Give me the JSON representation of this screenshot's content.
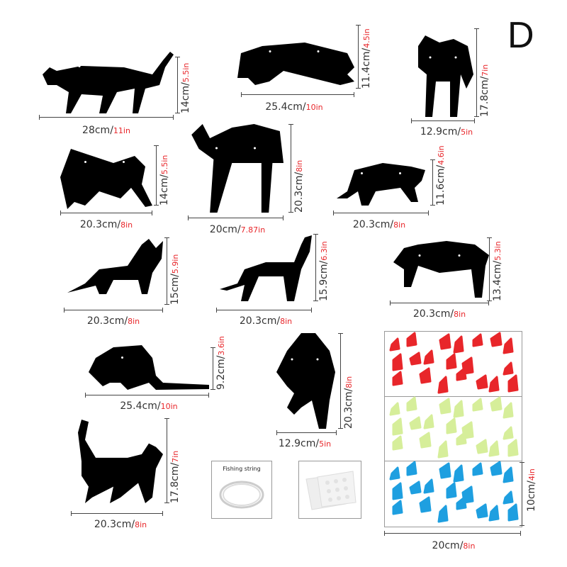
{
  "variant_letter": "D",
  "cats": [
    {
      "width_cm": "28cm/",
      "width_in": "11in",
      "height_cm": "14cm/",
      "height_in": "5.5in"
    },
    {
      "width_cm": "25.4cm/",
      "width_in": "10in",
      "height_cm": "11.4cm/",
      "height_in": "4.5in"
    },
    {
      "width_cm": "12.9cm/",
      "width_in": "5in",
      "height_cm": "17.8cm/",
      "height_in": "7in"
    },
    {
      "width_cm": "20.3cm/",
      "width_in": "8in",
      "height_cm": "14cm/",
      "height_in": "5.5in"
    },
    {
      "width_cm": "20cm/",
      "width_in": "7.87in",
      "height_cm": "20.3cm/",
      "height_in": "8in"
    },
    {
      "width_cm": "20.3cm/",
      "width_in": "8in",
      "height_cm": "11.6cm/",
      "height_in": "4.6in"
    },
    {
      "width_cm": "20.3cm/",
      "width_in": "8in",
      "height_cm": "15cm/",
      "height_in": "5.9in"
    },
    {
      "width_cm": "20.3cm/",
      "width_in": "8in",
      "height_cm": "15.9cm/",
      "height_in": "6.3in"
    },
    {
      "width_cm": "20.3cm/",
      "width_in": "8in",
      "height_cm": "13.4cm/",
      "height_in": "5.3in"
    },
    {
      "width_cm": "25.4cm/",
      "width_in": "10in",
      "height_cm": "9.2cm/",
      "height_in": "3.6in"
    },
    {
      "width_cm": "12.9cm/",
      "width_in": "5in",
      "height_cm": "20.3cm/",
      "height_in": "8in"
    },
    {
      "width_cm": "20.3cm/",
      "width_in": "8in",
      "height_cm": "17.8cm/",
      "height_in": "7in"
    }
  ],
  "accessories": {
    "fishing_string_label": "Fishing string"
  },
  "claws": {
    "colors": [
      "#e8262a",
      "#d6ee9a",
      "#1e9fe0"
    ],
    "width_cm": "20cm/",
    "width_in": "8in",
    "height_cm": "10cm/",
    "height_in": "4in"
  }
}
